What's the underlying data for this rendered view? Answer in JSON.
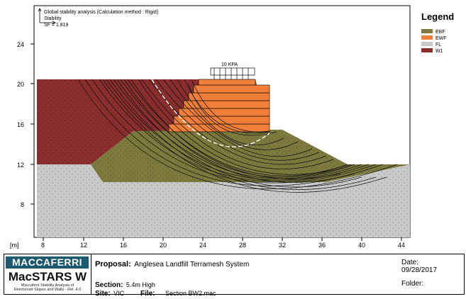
{
  "annotations": {
    "line1": "Global stability analysis (Calculation method : Rigid)",
    "line2": "Stability",
    "line3": "SF = 1.819",
    "load_label": "10 KPA"
  },
  "legend": {
    "title": "Legend",
    "items": [
      {
        "label": "EBF",
        "color": "#7a7a3c"
      },
      {
        "label": "EWF",
        "color": "#ef7f3a"
      },
      {
        "label": "FL",
        "color": "#c8c8c8"
      },
      {
        "label": "W1",
        "color": "#8a2c2c"
      }
    ]
  },
  "axes": {
    "unit_label": "[m]",
    "x_ticks": [
      "8",
      "12",
      "16",
      "20",
      "24",
      "28",
      "32",
      "36",
      "40",
      "44"
    ],
    "y_ticks": [
      "24",
      "20",
      "16",
      "12",
      "8"
    ]
  },
  "titleblock": {
    "logo_text": "MACCAFERRI",
    "product": "MacSTARS W",
    "product_sub_1": "Maccaferri Stability Analysis of",
    "product_sub_2": "Reinforced Slopes and Walls - Rel. 4.0",
    "proposal_label": "Proposal:",
    "proposal_value": "Anglesea Landfill Terramesh System",
    "section_label": "Section:",
    "section_value": "5.4m High",
    "site_label": "Site:",
    "site_value": "VIC",
    "file_label": "File:",
    "file_value": "Section BW2.mac",
    "date_label": "Date:",
    "date_value": "09/28/2017",
    "folder_label": "Folder:"
  }
}
